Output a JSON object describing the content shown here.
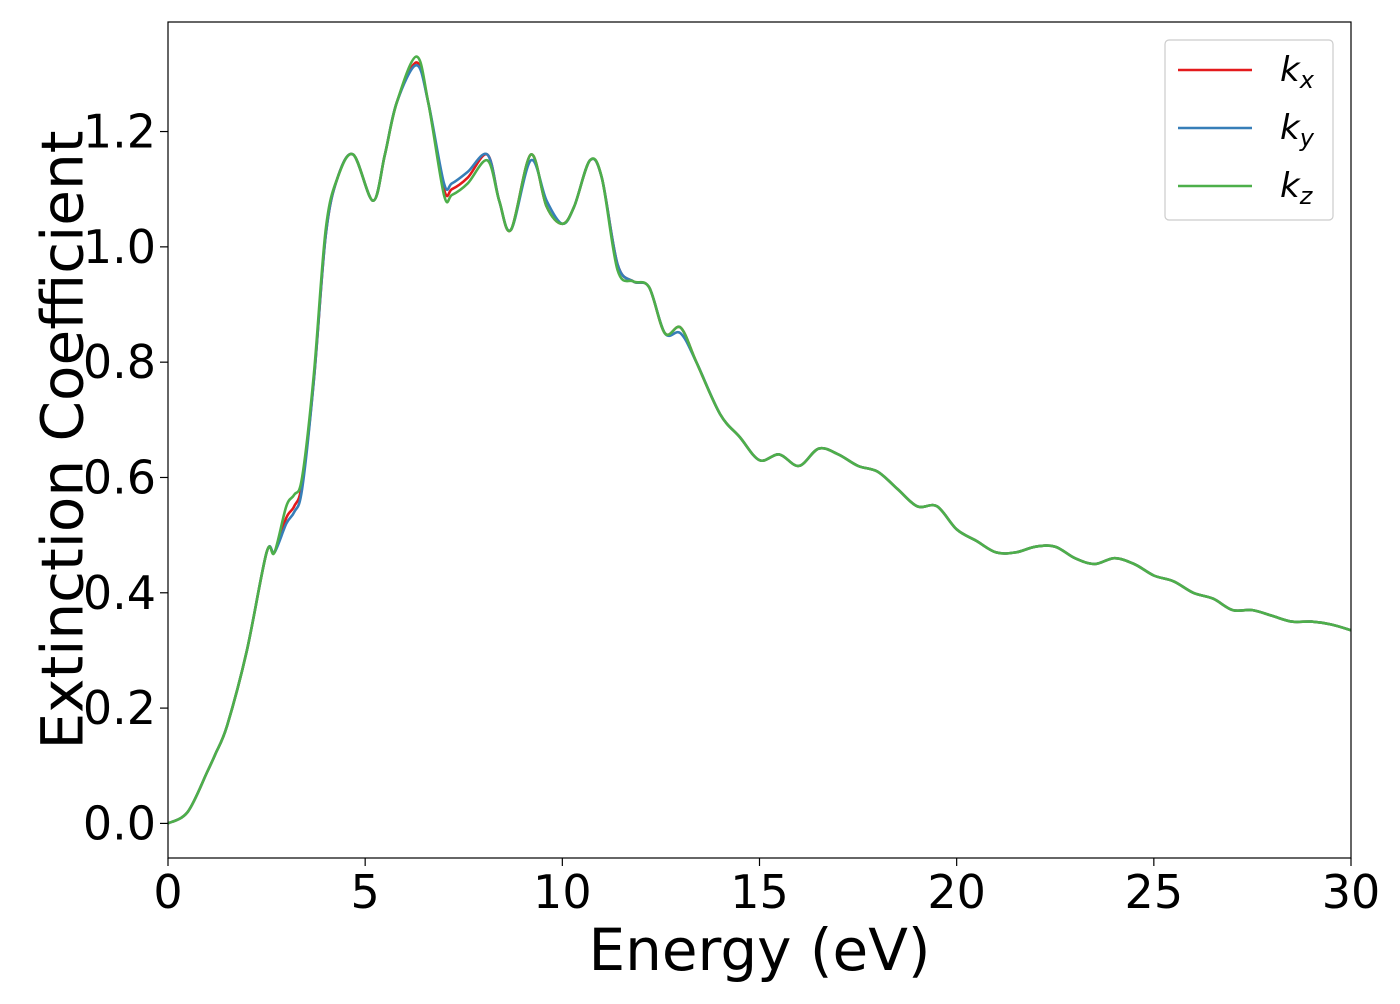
{
  "chart_data": {
    "type": "line",
    "title": "",
    "xlabel": "Energy (eV)",
    "ylabel": "Extinction Coefficient",
    "xlim": [
      0,
      30
    ],
    "ylim": [
      -0.06,
      1.39
    ],
    "grid": false,
    "legend_position": "top-right",
    "x_ticks": [
      0,
      5,
      10,
      15,
      20,
      25,
      30
    ],
    "x_tick_labels": [
      "0",
      "5",
      "10",
      "15",
      "20",
      "25",
      "30"
    ],
    "y_ticks": [
      0.0,
      0.2,
      0.4,
      0.6,
      0.8,
      1.0,
      1.2
    ],
    "y_tick_labels": [
      "0.0",
      "0.2",
      "0.4",
      "0.6",
      "0.8",
      "1.0",
      "1.2"
    ],
    "x": [
      0,
      0.5,
      1.0,
      1.2,
      1.5,
      2.0,
      2.5,
      2.7,
      3.0,
      3.2,
      3.4,
      3.7,
      4.0,
      4.3,
      4.7,
      5.2,
      5.5,
      5.8,
      6.3,
      6.6,
      7.0,
      7.2,
      7.6,
      8.1,
      8.4,
      8.7,
      9.2,
      9.6,
      10.0,
      10.3,
      10.7,
      11.0,
      11.4,
      11.8,
      12.2,
      12.6,
      13.0,
      13.4,
      14.0,
      14.5,
      15.0,
      15.5,
      16.0,
      16.5,
      17.0,
      17.5,
      18.0,
      18.5,
      19.0,
      19.5,
      20.0,
      20.5,
      21.0,
      21.5,
      22.0,
      22.5,
      23.0,
      23.5,
      24.0,
      24.5,
      25.0,
      25.5,
      26.0,
      26.5,
      27.0,
      27.5,
      28.0,
      28.5,
      29.0,
      29.5,
      30.0
    ],
    "series": [
      {
        "name": "k_x",
        "color": "#e41a1c",
        "values": [
          0.0,
          0.02,
          0.09,
          0.12,
          0.17,
          0.3,
          0.47,
          0.47,
          0.53,
          0.55,
          0.59,
          0.77,
          1.02,
          1.12,
          1.16,
          1.08,
          1.16,
          1.25,
          1.32,
          1.25,
          1.1,
          1.1,
          1.12,
          1.16,
          1.08,
          1.03,
          1.16,
          1.07,
          1.04,
          1.07,
          1.15,
          1.12,
          0.97,
          0.94,
          0.93,
          0.85,
          0.86,
          0.8,
          0.71,
          0.67,
          0.63,
          0.64,
          0.62,
          0.65,
          0.64,
          0.62,
          0.61,
          0.58,
          0.55,
          0.55,
          0.51,
          0.49,
          0.47,
          0.47,
          0.48,
          0.48,
          0.46,
          0.45,
          0.46,
          0.45,
          0.43,
          0.42,
          0.4,
          0.39,
          0.37,
          0.37,
          0.36,
          0.35,
          0.35,
          0.345,
          0.335
        ]
      },
      {
        "name": "k_y",
        "color": "#377eb8",
        "values": [
          0.0,
          0.02,
          0.09,
          0.12,
          0.17,
          0.3,
          0.47,
          0.47,
          0.52,
          0.54,
          0.58,
          0.77,
          1.02,
          1.12,
          1.16,
          1.08,
          1.16,
          1.25,
          1.315,
          1.25,
          1.11,
          1.11,
          1.13,
          1.16,
          1.08,
          1.03,
          1.15,
          1.08,
          1.04,
          1.07,
          1.15,
          1.12,
          0.97,
          0.94,
          0.93,
          0.85,
          0.85,
          0.8,
          0.71,
          0.67,
          0.63,
          0.64,
          0.62,
          0.65,
          0.64,
          0.62,
          0.61,
          0.58,
          0.55,
          0.55,
          0.51,
          0.49,
          0.47,
          0.47,
          0.48,
          0.48,
          0.46,
          0.45,
          0.46,
          0.45,
          0.43,
          0.42,
          0.4,
          0.39,
          0.37,
          0.37,
          0.36,
          0.35,
          0.35,
          0.345,
          0.335
        ]
      },
      {
        "name": "k_z",
        "color": "#4daf4a",
        "values": [
          0.0,
          0.02,
          0.09,
          0.12,
          0.17,
          0.3,
          0.47,
          0.47,
          0.55,
          0.57,
          0.6,
          0.78,
          1.03,
          1.12,
          1.16,
          1.08,
          1.16,
          1.25,
          1.33,
          1.25,
          1.09,
          1.09,
          1.11,
          1.15,
          1.08,
          1.03,
          1.16,
          1.07,
          1.04,
          1.07,
          1.15,
          1.12,
          0.96,
          0.94,
          0.93,
          0.85,
          0.86,
          0.8,
          0.71,
          0.67,
          0.63,
          0.64,
          0.62,
          0.65,
          0.64,
          0.62,
          0.61,
          0.58,
          0.55,
          0.55,
          0.51,
          0.49,
          0.47,
          0.47,
          0.48,
          0.48,
          0.46,
          0.45,
          0.46,
          0.45,
          0.43,
          0.42,
          0.4,
          0.39,
          0.37,
          0.37,
          0.36,
          0.35,
          0.35,
          0.345,
          0.335
        ]
      }
    ],
    "legend": [
      {
        "base": "k",
        "sub": "x",
        "color": "#e41a1c"
      },
      {
        "base": "k",
        "sub": "y",
        "color": "#377eb8"
      },
      {
        "base": "k",
        "sub": "z",
        "color": "#4daf4a"
      }
    ]
  }
}
